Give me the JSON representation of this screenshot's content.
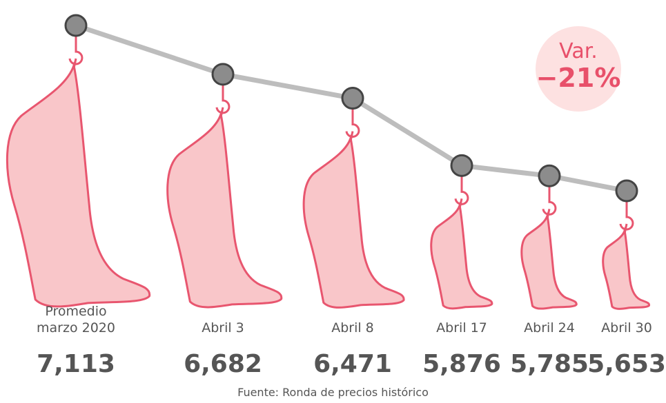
{
  "chart_data": {
    "type": "line",
    "categories": [
      "Promedio marzo 2020",
      "Abril 3",
      "Abril 8",
      "Abril 17",
      "Abril 24",
      "Abril 30"
    ],
    "values": [
      7113,
      6682,
      6471,
      5876,
      5785,
      5653
    ],
    "value_labels": [
      "7,113",
      "6,682",
      "6,471",
      "5,876",
      "5,785",
      "5,653"
    ],
    "line_color": "#bdbdbd",
    "marker_color": "#8c8c8c",
    "ham_color": "#f9c6c9",
    "ham_stroke": "#e8566f",
    "badge": {
      "label": "Var.",
      "value": -21,
      "value_label": "−21%"
    },
    "source": "Fuente: Ronda de precios histórico"
  }
}
